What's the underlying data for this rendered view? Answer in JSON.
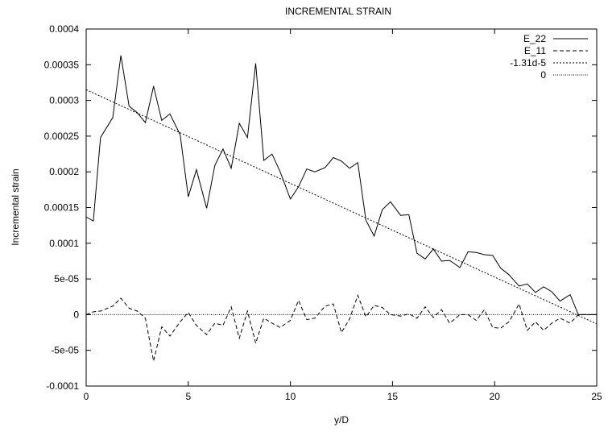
{
  "chart_data": {
    "type": "line",
    "title": "INCREMENTAL STRAIN",
    "xlabel": "y/D",
    "ylabel": "Incremental strain",
    "xlim": [
      0,
      25
    ],
    "ylim": [
      -0.0001,
      0.0004
    ],
    "grid": false,
    "legend_position": "top-right",
    "x_ticks": [
      "0",
      "5",
      "10",
      "15",
      "20",
      "25"
    ],
    "x_tick_values": [
      0,
      5,
      10,
      15,
      20,
      25
    ],
    "y_ticks": [
      "-0.0001",
      "-5e-05",
      "0",
      "5e-05",
      "0.0001",
      "0.00015",
      "0.0002",
      "0.00025",
      "0.0003",
      "0.00035",
      "0.0004"
    ],
    "y_tick_values": [
      -0.0001,
      -5e-05,
      0,
      5e-05,
      0.0001,
      0.00015,
      0.0002,
      0.00025,
      0.0003,
      0.00035,
      0.0004
    ],
    "series": [
      {
        "name": "E_22",
        "style": "solid",
        "x": [
          0,
          0.35,
          0.7,
          1.3,
          1.7,
          2.1,
          2.5,
          2.9,
          3.3,
          3.7,
          4.1,
          4.6,
          5.0,
          5.4,
          5.9,
          6.3,
          6.7,
          7.1,
          7.5,
          7.9,
          8.3,
          8.7,
          9.1,
          9.5,
          10.0,
          10.4,
          10.8,
          11.2,
          11.7,
          12.1,
          12.5,
          12.9,
          13.3,
          13.7,
          14.1,
          14.5,
          14.9,
          15.4,
          15.8,
          16.2,
          16.6,
          17.0,
          17.4,
          17.8,
          18.3,
          18.7,
          19.1,
          19.5,
          19.9,
          20.3,
          20.7,
          21.2,
          21.6,
          22.0,
          22.4,
          22.8,
          23.2,
          23.7,
          24.1,
          24.5,
          25.0
        ],
        "y": [
          0.000137,
          0.000131,
          0.000248,
          0.000276,
          0.000363,
          0.000292,
          0.000283,
          0.000269,
          0.00032,
          0.000272,
          0.000281,
          0.000252,
          0.000165,
          0.000203,
          0.000149,
          0.000209,
          0.000232,
          0.000205,
          0.000268,
          0.000248,
          0.000352,
          0.000216,
          0.000225,
          0.0002,
          0.000162,
          0.000179,
          0.000204,
          0.0002,
          0.000206,
          0.00022,
          0.000215,
          0.000205,
          0.000213,
          0.000132,
          0.00011,
          0.000147,
          0.000158,
          0.000139,
          0.00014,
          8.6e-05,
          7.8e-05,
          9.2e-05,
          7.5e-05,
          7.6e-05,
          6.6e-05,
          8.8e-05,
          8.7e-05,
          8.4e-05,
          8.3e-05,
          6.5e-05,
          5.6e-05,
          4e-05,
          4.3e-05,
          3.1e-05,
          3.9e-05,
          3.2e-05,
          1.9e-05,
          2.8e-05,
          0.0,
          0.0,
          0.0
        ]
      },
      {
        "name": "E_11",
        "style": "dashed",
        "x": [
          0,
          0.35,
          0.7,
          1.3,
          1.7,
          2.1,
          2.5,
          2.9,
          3.3,
          3.7,
          4.1,
          4.6,
          5.0,
          5.4,
          5.9,
          6.3,
          6.7,
          7.1,
          7.5,
          7.9,
          8.3,
          8.7,
          9.1,
          9.5,
          10.0,
          10.4,
          10.8,
          11.2,
          11.7,
          12.1,
          12.5,
          12.9,
          13.3,
          13.7,
          14.1,
          14.5,
          14.9,
          15.4,
          15.8,
          16.2,
          16.6,
          17.0,
          17.4,
          17.8,
          18.3,
          18.7,
          19.1,
          19.5,
          19.9,
          20.3,
          20.7,
          21.2,
          21.6,
          22.0,
          22.4,
          22.8,
          23.2,
          23.7,
          24.1,
          24.5,
          25.0
        ],
        "y": [
          0.0,
          4e-06,
          5e-06,
          1.2e-05,
          2.3e-05,
          9e-06,
          5e-06,
          -5e-06,
          -6.5e-05,
          -1.7e-05,
          -3e-05,
          -1e-05,
          3e-06,
          -1.5e-05,
          -2.8e-05,
          -1.2e-05,
          -1.5e-05,
          1.1e-05,
          -3.3e-05,
          5e-06,
          -4e-05,
          -5e-06,
          -1.2e-05,
          -1.8e-05,
          -8e-06,
          2e-05,
          -7e-06,
          -5e-06,
          1.2e-05,
          1.5e-05,
          -2.5e-05,
          -6e-06,
          2.7e-05,
          -3e-06,
          1.3e-05,
          1e-05,
          0.0,
          -2e-06,
          1e-06,
          -5e-06,
          1.1e-05,
          -4e-06,
          7e-06,
          -1.2e-05,
          0.0,
          0.0,
          -8e-06,
          7e-06,
          -1.8e-05,
          -1.9e-05,
          -1e-05,
          1.5e-05,
          -2.2e-05,
          -1e-05,
          -2.2e-05,
          -1.2e-05,
          -5e-06,
          -1.2e-05,
          0.0,
          0.0,
          0.0
        ]
      },
      {
        "name": "-1.31d-5",
        "style": "dotted-fine",
        "x": [
          0,
          25
        ],
        "y": [
          0.000315,
          -1.3e-05
        ]
      },
      {
        "name": "0",
        "style": "dotted",
        "x": [
          0,
          25
        ],
        "y": [
          0,
          0
        ]
      }
    ]
  }
}
